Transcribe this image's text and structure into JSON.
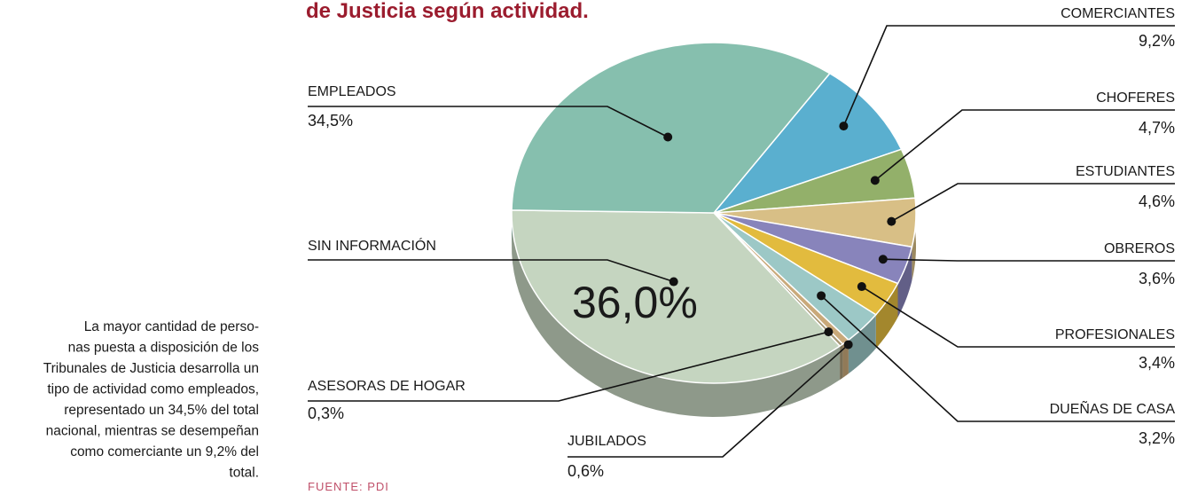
{
  "chart_data": {
    "type": "pie",
    "title": "de Justicia según actividad.",
    "categories": [
      "COMERCIANTES",
      "CHOFERES",
      "ESTUDIANTES",
      "OBREROS",
      "PROFESIONALES",
      "DUEÑAS DE CASA",
      "JUBILADOS",
      "ASESORAS DE HOGAR",
      "SIN INFORMACIÓN",
      "EMPLEADOS"
    ],
    "values": [
      9.2,
      4.7,
      4.6,
      3.6,
      3.4,
      3.2,
      0.6,
      0.3,
      36.0,
      34.5
    ],
    "value_labels": [
      "9,2%",
      "4,7%",
      "4,6%",
      "3,6%",
      "3,4%",
      "3,2%",
      "0,6%",
      "0,3%",
      "36,0%",
      "34,5%"
    ],
    "colors": [
      "#5aafcf",
      "#93b06a",
      "#d8bf86",
      "#8884bb",
      "#e2bb3e",
      "#9cc8c6",
      "#c9a97a",
      "#a89a78",
      "#c5d5c0",
      "#86bfae"
    ],
    "annotation": [
      "La mayor cantidad de perso-",
      "nas puesta a disposición de los",
      "Tribunales de Justicia desarrolla un",
      "tipo de actividad como empleados,",
      "representado un 34,5% del total",
      "nacional, mientras se desempeñan",
      "como comerciante un 9,2% del",
      "total."
    ],
    "source": "FUENTE: PDI"
  }
}
